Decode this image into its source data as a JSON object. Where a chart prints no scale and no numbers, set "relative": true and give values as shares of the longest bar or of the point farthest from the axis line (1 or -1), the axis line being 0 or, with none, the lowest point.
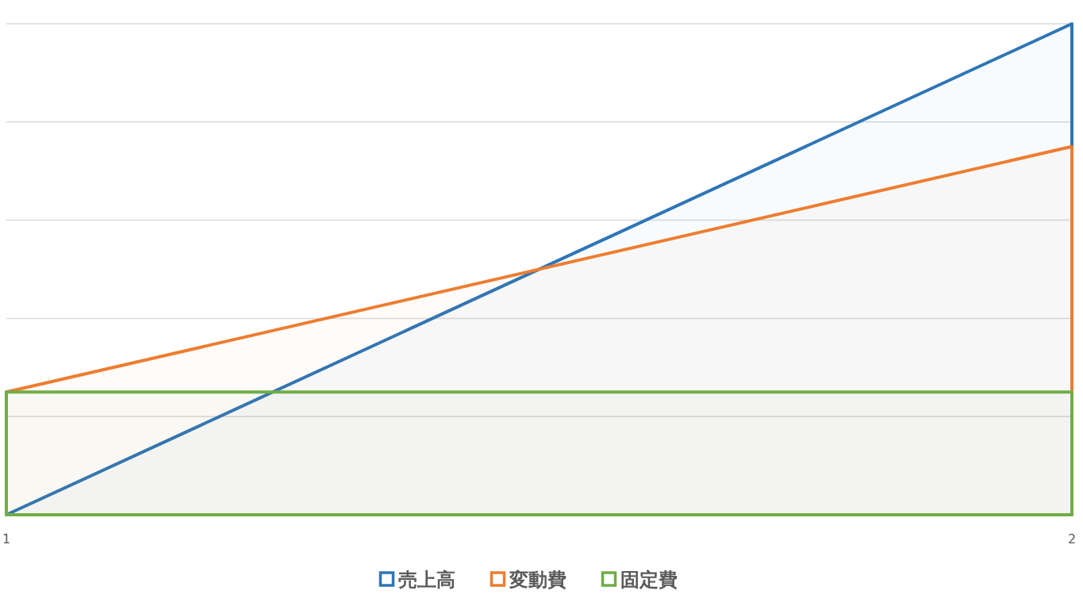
{
  "chart_data": {
    "type": "area",
    "relative": true,
    "x": [
      1,
      2
    ],
    "xlim": [
      1,
      2
    ],
    "xticks": [
      1,
      2
    ],
    "series": [
      {
        "name": "売上高",
        "color": "#2e75b6",
        "values": [
          0,
          1
        ]
      },
      {
        "name": "変動費",
        "color": "#ed7d31",
        "values": [
          0.25,
          0.75
        ]
      },
      {
        "name": "固定費",
        "color": "#70ad47",
        "values": [
          0.25,
          0.25
        ]
      }
    ],
    "grid": "y",
    "legend": "bottom"
  }
}
